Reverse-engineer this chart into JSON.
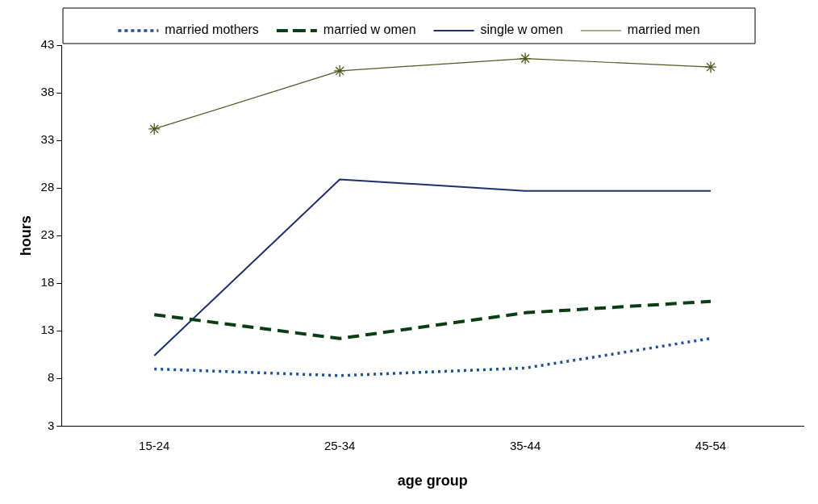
{
  "chart_data": {
    "type": "line",
    "xlabel": "age group",
    "ylabel": "hours",
    "categories": [
      "15-24",
      "25-34",
      "35-44",
      "45-54"
    ],
    "series": [
      {
        "name": "married mothers",
        "color": "#1f4e9c",
        "line_style": "dotted",
        "marker": "none",
        "values": [
          9.0,
          8.3,
          9.1,
          12.2
        ]
      },
      {
        "name": "married w omen",
        "color": "#0b3d12",
        "line_style": "dashed",
        "marker": "none",
        "values": [
          14.7,
          12.2,
          14.9,
          16.1
        ]
      },
      {
        "name": "single w omen",
        "color": "#1a2f6e",
        "line_style": "solid",
        "marker": "none",
        "values": [
          10.4,
          28.9,
          27.7,
          27.7
        ]
      },
      {
        "name": "married men",
        "color": "#4b5a1e",
        "line_style": "solid",
        "marker": "cross",
        "values": [
          34.2,
          40.3,
          41.6,
          40.7
        ]
      }
    ],
    "ylim": [
      3,
      43
    ],
    "yticks": [
      3,
      8,
      13,
      18,
      23,
      28,
      33,
      38,
      43
    ],
    "grid": false,
    "legend": "top"
  }
}
